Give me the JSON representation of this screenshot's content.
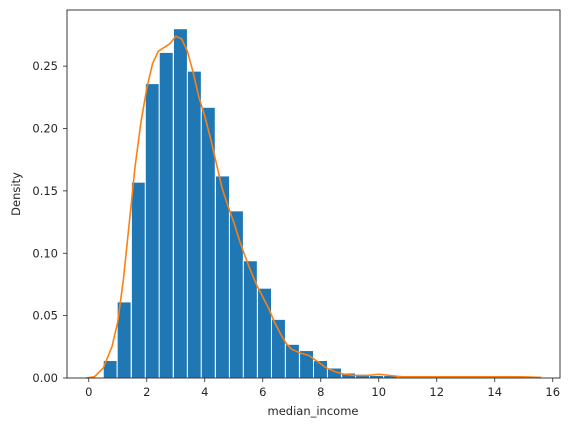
{
  "chart_data": {
    "type": "bar",
    "subtype": "histogram-with-kde",
    "title": "",
    "xlabel": "median_income",
    "ylabel": "Density",
    "xlim": [
      -0.75,
      16.25
    ],
    "ylim": [
      0,
      0.295
    ],
    "xticks": [
      0,
      2,
      4,
      6,
      8,
      10,
      12,
      14,
      16
    ],
    "xtick_labels": [
      "0",
      "2",
      "4",
      "6",
      "8",
      "10",
      "12",
      "14",
      "16"
    ],
    "yticks": [
      0.0,
      0.05,
      0.1,
      0.15,
      0.2,
      0.25
    ],
    "ytick_labels": [
      "0.00",
      "0.05",
      "0.10",
      "0.15",
      "0.20",
      "0.25"
    ],
    "grid": false,
    "bar_color": "#1f77b4",
    "bar_edge_color": "#ffffff",
    "kde_color": "#ff7f0e",
    "bin_width": 0.483,
    "bins": [
      {
        "x0": 0.5,
        "value": 0.014
      },
      {
        "x0": 0.98,
        "value": 0.061
      },
      {
        "x0": 1.47,
        "value": 0.157
      },
      {
        "x0": 1.95,
        "value": 0.236
      },
      {
        "x0": 2.43,
        "value": 0.261
      },
      {
        "x0": 2.92,
        "value": 0.28
      },
      {
        "x0": 3.4,
        "value": 0.246
      },
      {
        "x0": 3.88,
        "value": 0.217
      },
      {
        "x0": 4.37,
        "value": 0.162
      },
      {
        "x0": 4.85,
        "value": 0.134
      },
      {
        "x0": 5.33,
        "value": 0.094
      },
      {
        "x0": 5.82,
        "value": 0.072
      },
      {
        "x0": 6.3,
        "value": 0.047
      },
      {
        "x0": 6.78,
        "value": 0.027
      },
      {
        "x0": 7.27,
        "value": 0.022
      },
      {
        "x0": 7.75,
        "value": 0.014
      },
      {
        "x0": 8.23,
        "value": 0.008
      },
      {
        "x0": 8.72,
        "value": 0.004
      },
      {
        "x0": 9.2,
        "value": 0.003
      },
      {
        "x0": 9.68,
        "value": 0.002
      },
      {
        "x0": 10.17,
        "value": 0.002
      },
      {
        "x0": 10.65,
        "value": 0.001
      },
      {
        "x0": 11.13,
        "value": 0.001
      },
      {
        "x0": 11.62,
        "value": 0.001
      },
      {
        "x0": 12.1,
        "value": 0.001
      },
      {
        "x0": 12.58,
        "value": 0.001
      },
      {
        "x0": 13.07,
        "value": 0.001
      },
      {
        "x0": 13.55,
        "value": 0.001
      },
      {
        "x0": 14.03,
        "value": 0.0005
      },
      {
        "x0": 14.52,
        "value": 0.0005
      },
      {
        "x0": 15.0,
        "value": 0.0015
      }
    ],
    "kde": {
      "x": [
        -0.1,
        0.2,
        0.5,
        0.8,
        1.0,
        1.2,
        1.4,
        1.6,
        1.8,
        2.0,
        2.2,
        2.4,
        2.6,
        2.8,
        3.0,
        3.2,
        3.4,
        3.6,
        3.8,
        4.0,
        4.2,
        4.4,
        4.6,
        4.8,
        5.0,
        5.2,
        5.4,
        5.6,
        5.8,
        6.0,
        6.2,
        6.4,
        6.6,
        6.8,
        7.0,
        7.3,
        7.6,
        7.9,
        8.2,
        8.5,
        8.8,
        9.2,
        9.6,
        10.0,
        10.4,
        10.8,
        11.2,
        11.6,
        12.0,
        12.5,
        13.0,
        13.5,
        14.0,
        14.5,
        15.0,
        15.6
      ],
      "y": [
        0.0,
        0.001,
        0.008,
        0.025,
        0.045,
        0.08,
        0.125,
        0.17,
        0.205,
        0.232,
        0.252,
        0.262,
        0.265,
        0.268,
        0.274,
        0.272,
        0.262,
        0.245,
        0.225,
        0.21,
        0.192,
        0.172,
        0.152,
        0.138,
        0.125,
        0.11,
        0.097,
        0.085,
        0.074,
        0.065,
        0.056,
        0.045,
        0.036,
        0.028,
        0.023,
        0.02,
        0.018,
        0.013,
        0.008,
        0.005,
        0.003,
        0.002,
        0.002,
        0.003,
        0.002,
        0.001,
        0.001,
        0.001,
        0.001,
        0.001,
        0.001,
        0.001,
        0.001,
        0.001,
        0.001,
        0.0005
      ]
    }
  }
}
